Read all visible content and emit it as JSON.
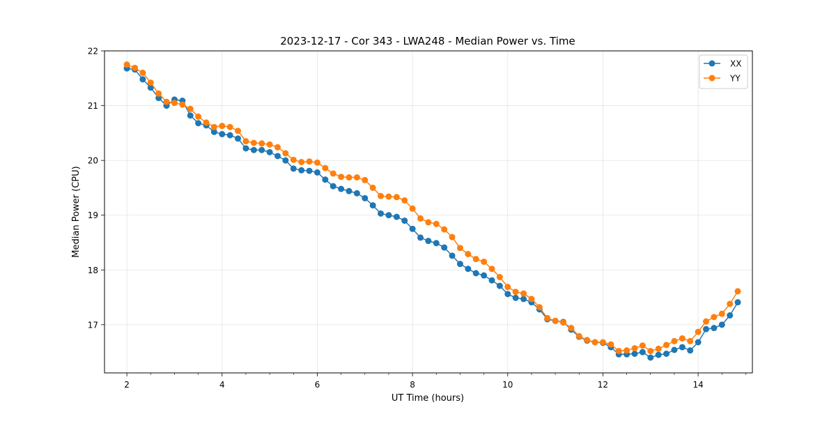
{
  "chart_data": {
    "type": "line",
    "title": "2023-12-17 - Cor 343 - LWA248 - Median Power vs. Time",
    "xlabel": "UT Time (hours)",
    "ylabel": "Median Power (CPU)",
    "xlim": [
      1.53,
      15.14
    ],
    "ylim": [
      16.12,
      22.0
    ],
    "xticks": [
      2,
      4,
      6,
      8,
      10,
      12,
      14
    ],
    "xtick_labels": [
      "2",
      "4",
      "6",
      "8",
      "10",
      "12",
      "14"
    ],
    "yticks": [
      17,
      18,
      19,
      20,
      21,
      22
    ],
    "ytick_labels": [
      "17",
      "18",
      "19",
      "20",
      "21",
      "22"
    ],
    "grid": true,
    "legend_position": "top-right",
    "series": [
      {
        "name": "XX",
        "color": "#1f77b4",
        "x": [
          2.0,
          2.167,
          2.333,
          2.5,
          2.667,
          2.833,
          3.0,
          3.167,
          3.333,
          3.5,
          3.667,
          3.833,
          4.0,
          4.167,
          4.333,
          4.5,
          4.667,
          4.833,
          5.0,
          5.167,
          5.333,
          5.5,
          5.667,
          5.833,
          6.0,
          6.167,
          6.333,
          6.5,
          6.667,
          6.833,
          7.0,
          7.167,
          7.333,
          7.5,
          7.667,
          7.833,
          8.0,
          8.167,
          8.333,
          8.5,
          8.667,
          8.833,
          9.0,
          9.167,
          9.333,
          9.5,
          9.667,
          9.833,
          10.0,
          10.167,
          10.333,
          10.5,
          10.667,
          10.833,
          11.0,
          11.167,
          11.333,
          11.5,
          11.667,
          11.833,
          12.0,
          12.167,
          12.333,
          12.5,
          12.667,
          12.833,
          13.0,
          13.167,
          13.333,
          13.5,
          13.667,
          13.833,
          14.0,
          14.167,
          14.333,
          14.5,
          14.667,
          14.833
        ],
        "y": [
          21.68,
          21.66,
          21.48,
          21.33,
          21.14,
          21.0,
          21.11,
          21.09,
          20.82,
          20.68,
          20.64,
          20.52,
          20.48,
          20.46,
          20.4,
          20.22,
          20.19,
          20.19,
          20.15,
          20.08,
          20.0,
          19.85,
          19.82,
          19.81,
          19.78,
          19.65,
          19.53,
          19.48,
          19.44,
          19.4,
          19.31,
          19.18,
          19.03,
          19.0,
          18.97,
          18.9,
          18.75,
          18.59,
          18.53,
          18.49,
          18.41,
          18.26,
          18.11,
          18.02,
          17.94,
          17.9,
          17.81,
          17.71,
          17.56,
          17.49,
          17.47,
          17.41,
          17.28,
          17.1,
          17.07,
          17.05,
          16.91,
          16.78,
          16.71,
          16.68,
          16.67,
          16.59,
          16.46,
          16.46,
          16.47,
          16.5,
          16.4,
          16.45,
          16.47,
          16.54,
          16.59,
          16.53,
          16.68,
          16.92,
          16.94,
          17.0,
          17.17,
          17.41
        ]
      },
      {
        "name": "YY",
        "color": "#ff7f0e",
        "x": [
          2.0,
          2.167,
          2.333,
          2.5,
          2.667,
          2.833,
          3.0,
          3.167,
          3.333,
          3.5,
          3.667,
          3.833,
          4.0,
          4.167,
          4.333,
          4.5,
          4.667,
          4.833,
          5.0,
          5.167,
          5.333,
          5.5,
          5.667,
          5.833,
          6.0,
          6.167,
          6.333,
          6.5,
          6.667,
          6.833,
          7.0,
          7.167,
          7.333,
          7.5,
          7.667,
          7.833,
          8.0,
          8.167,
          8.333,
          8.5,
          8.667,
          8.833,
          9.0,
          9.167,
          9.333,
          9.5,
          9.667,
          9.833,
          10.0,
          10.167,
          10.333,
          10.5,
          10.667,
          10.833,
          11.0,
          11.167,
          11.333,
          11.5,
          11.667,
          11.833,
          12.0,
          12.167,
          12.333,
          12.5,
          12.667,
          12.833,
          13.0,
          13.167,
          13.333,
          13.5,
          13.667,
          13.833,
          14.0,
          14.167,
          14.333,
          14.5,
          14.667,
          14.833
        ],
        "y": [
          21.75,
          21.69,
          21.6,
          21.42,
          21.22,
          21.07,
          21.05,
          21.02,
          20.94,
          20.8,
          20.69,
          20.61,
          20.63,
          20.61,
          20.54,
          20.35,
          20.32,
          20.31,
          20.29,
          20.24,
          20.13,
          20.01,
          19.97,
          19.98,
          19.96,
          19.86,
          19.76,
          19.7,
          19.69,
          19.69,
          19.64,
          19.5,
          19.35,
          19.34,
          19.33,
          19.27,
          19.12,
          18.94,
          18.87,
          18.84,
          18.74,
          18.6,
          18.4,
          18.29,
          18.2,
          18.15,
          18.02,
          17.87,
          17.69,
          17.6,
          17.57,
          17.47,
          17.32,
          17.12,
          17.07,
          17.04,
          16.94,
          16.79,
          16.72,
          16.68,
          16.68,
          16.64,
          16.52,
          16.53,
          16.57,
          16.62,
          16.52,
          16.56,
          16.63,
          16.7,
          16.75,
          16.7,
          16.87,
          17.06,
          17.14,
          17.2,
          17.38,
          17.61
        ]
      }
    ]
  }
}
